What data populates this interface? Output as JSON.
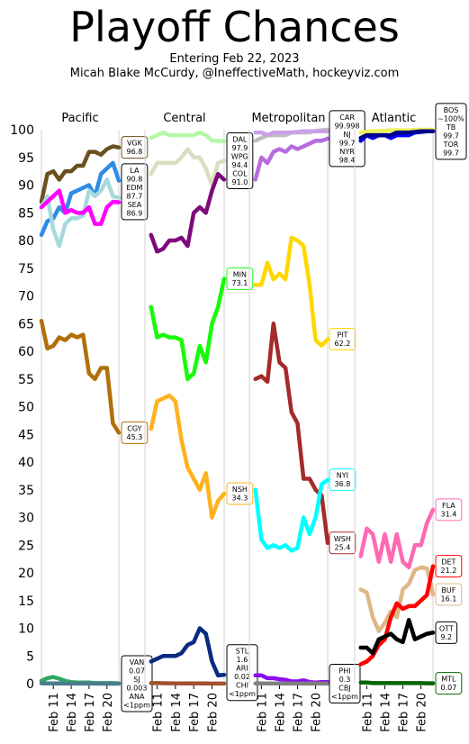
{
  "title": "Playoff Chances",
  "subtitle_line1": "Entering Feb 22, 2023",
  "subtitle_line2": "Micah Blake McCurdy, @IneffectiveMath, hockeyviz.com",
  "chart_data": {
    "type": "line",
    "title": "Playoff Chances",
    "ylim": [
      0,
      100
    ],
    "y_ticks": [
      0,
      5,
      10,
      15,
      20,
      25,
      30,
      35,
      40,
      45,
      50,
      55,
      60,
      65,
      70,
      75,
      80,
      85,
      90,
      95,
      100
    ],
    "x_tick_labels": [
      "Feb 11",
      "Feb 14",
      "Feb 17",
      "Feb 20"
    ],
    "x_day_range": [
      9,
      22
    ],
    "grid": false,
    "panels": [
      {
        "division": "Pacific",
        "series": [
          {
            "team": "VGK",
            "color": "#6B4F1D",
            "values": [
              87,
              92,
              92.5,
              91,
              92.5,
              92.5,
              93.5,
              93.5,
              96,
              96,
              95.5,
              96.5,
              97,
              96.8
            ]
          },
          {
            "team": "LA",
            "color": "#2E8BE6",
            "values": [
              81,
              83.5,
              84,
              86,
              85,
              88.5,
              89,
              89.5,
              90,
              88,
              92,
              93,
              94,
              90.8
            ]
          },
          {
            "team": "EDM",
            "color": "#A6DADC",
            "values": [
              86,
              88,
              82,
              79,
              83,
              84,
              84,
              84.5,
              89,
              88,
              89,
              91,
              88,
              87.7
            ]
          },
          {
            "team": "SEA",
            "color": "#FF00FF",
            "values": [
              86,
              87,
              88,
              89,
              85,
              85.5,
              85,
              85,
              86,
              83,
              83,
              86,
              87,
              86.9
            ]
          },
          {
            "team": "CGY",
            "color": "#B07009",
            "values": [
              65.5,
              60.5,
              61,
              62.5,
              62,
              63,
              62.5,
              63,
              56,
              55,
              57,
              57,
              47,
              45.3
            ]
          },
          {
            "team": "VAN",
            "color": "#2FAA63",
            "values": [
              0.5,
              1,
              1.2,
              0.9,
              0.5,
              0.3,
              0.2,
              0.2,
              0.2,
              0.1,
              0.1,
              0.1,
              0.1,
              0.07
            ]
          },
          {
            "team": "SJ",
            "color": "#4A7B8C",
            "values": [
              0.05,
              0.05,
              0.04,
              0.03,
              0.02,
              0.02,
              0.01,
              0.01,
              0.01,
              0.01,
              0.005,
              0.004,
              0.003,
              0.003
            ]
          }
        ],
        "labels": [
          {
            "text": "VGK\n96.8",
            "color": "#6B4F1D",
            "y": 96.8
          },
          {
            "text": "LA\n90.8\nEDM\n87.7\nSEA\n86.9",
            "color": "#000000",
            "y": 88.8
          },
          {
            "text": "CGY\n45.3",
            "color": "#B07009",
            "y": 45.3
          },
          {
            "text": "VAN\n0.07\nSJ\n0.003\nANA\n<1ppm",
            "color": "#000000",
            "y": 0
          }
        ]
      },
      {
        "division": "Central",
        "series": [
          {
            "team": "DAL",
            "color": "#B6F7A6",
            "values": [
              98.5,
              99,
              99.5,
              99,
              99,
              99,
              99,
              99,
              99.5,
              99,
              98,
              98,
              97.9
            ]
          },
          {
            "team": "WPG",
            "color": "#DCDCC0",
            "values": [
              92,
              94,
              94,
              94,
              94,
              95,
              96.5,
              95,
              95,
              93,
              90,
              94,
              94.4
            ]
          },
          {
            "team": "COL",
            "color": "#7D0A7C",
            "values": [
              81,
              78,
              78.5,
              80,
              80,
              80.5,
              79,
              85,
              86,
              85,
              89,
              92,
              91.0
            ]
          },
          {
            "team": "MIN",
            "color": "#17FB08",
            "values": [
              68,
              62.5,
              63,
              62.5,
              62.5,
              62,
              55,
              56,
              61,
              58,
              65,
              68,
              73.1
            ]
          },
          {
            "team": "NSH",
            "color": "#FFB11E",
            "values": [
              46,
              51,
              51.5,
              52,
              51,
              44,
              39,
              37,
              35,
              38,
              30,
              33,
              34.3
            ]
          },
          {
            "team": "STL",
            "color": "#0A2A82",
            "values": [
              4,
              4.5,
              5,
              5,
              5,
              5.5,
              7,
              7.5,
              10,
              9,
              4,
              1.5,
              1.6
            ]
          },
          {
            "team": "ARI",
            "color": "#A0522D",
            "values": [
              0.1,
              0.1,
              0.08,
              0.06,
              0.05,
              0.05,
              0.04,
              0.03,
              0.03,
              0.03,
              0.02,
              0.02,
              0.02
            ]
          }
        ],
        "labels": [
          {
            "text": "DAL\n97.9\nWPG\n94.4\nCOL\n91.0",
            "color": "#000000",
            "y": 94.4
          },
          {
            "text": "MIN\n73.1",
            "color": "#17FB08",
            "y": 73.1
          },
          {
            "text": "NSH\n34.3",
            "color": "#FFB11E",
            "y": 34.3
          },
          {
            "text": "STL\n1.6\nARI\n0.02\nCHI\n<1ppm",
            "color": "#000000",
            "y": 2
          }
        ]
      },
      {
        "division": "Metropolitan",
        "series": [
          {
            "team": "CAR",
            "color": "#BFBFBF",
            "values": [
              98,
              98.5,
              99,
              99,
              99,
              99,
              99.5,
              99.5,
              99.5,
              99.5,
              99.8,
              99.9,
              99.998
            ]
          },
          {
            "team": "NJ",
            "color": "#C8A0E8",
            "values": [
              99.5,
              99.5,
              99,
              99.5,
              99.5,
              99.5,
              99.5,
              99.6,
              99.7,
              99.7,
              99.7,
              99.7,
              99.7
            ]
          },
          {
            "team": "NYR",
            "color": "#B66CDF",
            "values": [
              91,
              95,
              94,
              96,
              96.5,
              96,
              97,
              96.5,
              97,
              97.5,
              98,
              98,
              98.4
            ]
          },
          {
            "team": "PIT",
            "color": "#FFD700",
            "values": [
              72,
              72,
              76,
              73,
              74,
              73,
              80.5,
              80,
              79,
              72,
              62,
              61,
              62.2
            ]
          },
          {
            "team": "WSH",
            "color": "#A52A2A",
            "values": [
              55,
              55.5,
              54.5,
              65,
              58,
              57,
              49,
              47,
              37,
              37,
              35,
              34,
              25.4
            ]
          },
          {
            "team": "NYI",
            "color": "#00FFFF",
            "values": [
              35,
              26,
              24.5,
              25,
              24.5,
              25,
              24,
              24.5,
              30,
              27,
              30,
              36,
              36.8
            ]
          },
          {
            "team": "PHI",
            "color": "#8A0DF0",
            "values": [
              1.5,
              1.5,
              1,
              1,
              0.8,
              0.7,
              0.4,
              0.4,
              0.6,
              0.3,
              0.2,
              0.3,
              0.3
            ]
          },
          {
            "team": "CBJ",
            "color": "#808080",
            "values": [
              0.05,
              0.05,
              0.04,
              0.03,
              0.02,
              0.02,
              0.01,
              0.01,
              0.01,
              0.01,
              0.01,
              0.01,
              0.01
            ]
          }
        ],
        "labels": [
          {
            "text": "CAR\n99.998\nNJ\n99.7\nNYR\n98.4",
            "color": "#000000",
            "y": 98.4
          },
          {
            "text": "PIT\n62.2",
            "color": "#FFD700",
            "y": 62.2
          },
          {
            "text": "NYI\n36.8",
            "color": "#00FFFF",
            "y": 36.8
          },
          {
            "text": "WSH\n25.4",
            "color": "#A52A2A",
            "y": 25.4
          },
          {
            "text": "PHI\n0.3\nCBJ\n<1ppm",
            "color": "#000000",
            "y": 0
          }
        ]
      },
      {
        "division": "Atlantic",
        "series": [
          {
            "team": "BOS",
            "color": "#EEF25A",
            "values": [
              99.5,
              99.6,
              99.7,
              99.8,
              99.8,
              99.9,
              99.9,
              99.9,
              99.9,
              100,
              100,
              100,
              100
            ]
          },
          {
            "team": "TB",
            "color": "#0000FF",
            "values": [
              98,
              99,
              98.5,
              99,
              99,
              98.5,
              99,
              99,
              99,
              99.5,
              99.6,
              99.7,
              99.7
            ]
          },
          {
            "team": "TOR",
            "color": "#00008B",
            "values": [
              98.5,
              99,
              99,
              99,
              99,
              99,
              99.5,
              99.5,
              99.5,
              99.6,
              99.7,
              99.7,
              99.7
            ]
          },
          {
            "team": "FLA",
            "color": "#FF69B4",
            "values": [
              23,
              28,
              27,
              22,
              27,
              22,
              27,
              22,
              21,
              25,
              25,
              29,
              31.4
            ]
          },
          {
            "team": "BUF",
            "color": "#DEB887",
            "values": [
              17,
              16.5,
              12,
              9.5,
              11,
              13,
              12,
              17,
              18,
              20.5,
              21,
              20.8,
              16.1
            ]
          },
          {
            "team": "DET",
            "color": "#FF0000",
            "values": [
              3.5,
              4,
              5,
              7,
              8,
              12,
              14.5,
              13.5,
              14,
              14,
              15,
              16,
              21.2
            ]
          },
          {
            "team": "OTT",
            "color": "#000000",
            "values": [
              6.5,
              6.5,
              5.5,
              8,
              8.5,
              9,
              8,
              7.5,
              11.5,
              8,
              8.5,
              9,
              9.2
            ]
          },
          {
            "team": "MTL",
            "color": "#006400",
            "values": [
              0.2,
              0.2,
              0.1,
              0.1,
              0.1,
              0.1,
              0.1,
              0.1,
              0.1,
              0.1,
              0.1,
              0.07,
              0.07
            ]
          }
        ],
        "labels": [
          {
            "text": "BOS\n~100%\nTB\n99.7\nTOR\n99.7",
            "color": "#000000",
            "y": 99.7
          },
          {
            "text": "FLA\n31.4",
            "color": "#FF69B4",
            "y": 31.4
          },
          {
            "text": "DET\n21.2",
            "color": "#FF0000",
            "y": 21.2
          },
          {
            "text": "BUF\n16.1",
            "color": "#DEB887",
            "y": 16.1
          },
          {
            "text": "OTT\n9.2",
            "color": "#000000",
            "y": 9.2
          },
          {
            "text": "MTL\n0.07",
            "color": "#006400",
            "y": 0.07
          }
        ]
      }
    ]
  }
}
